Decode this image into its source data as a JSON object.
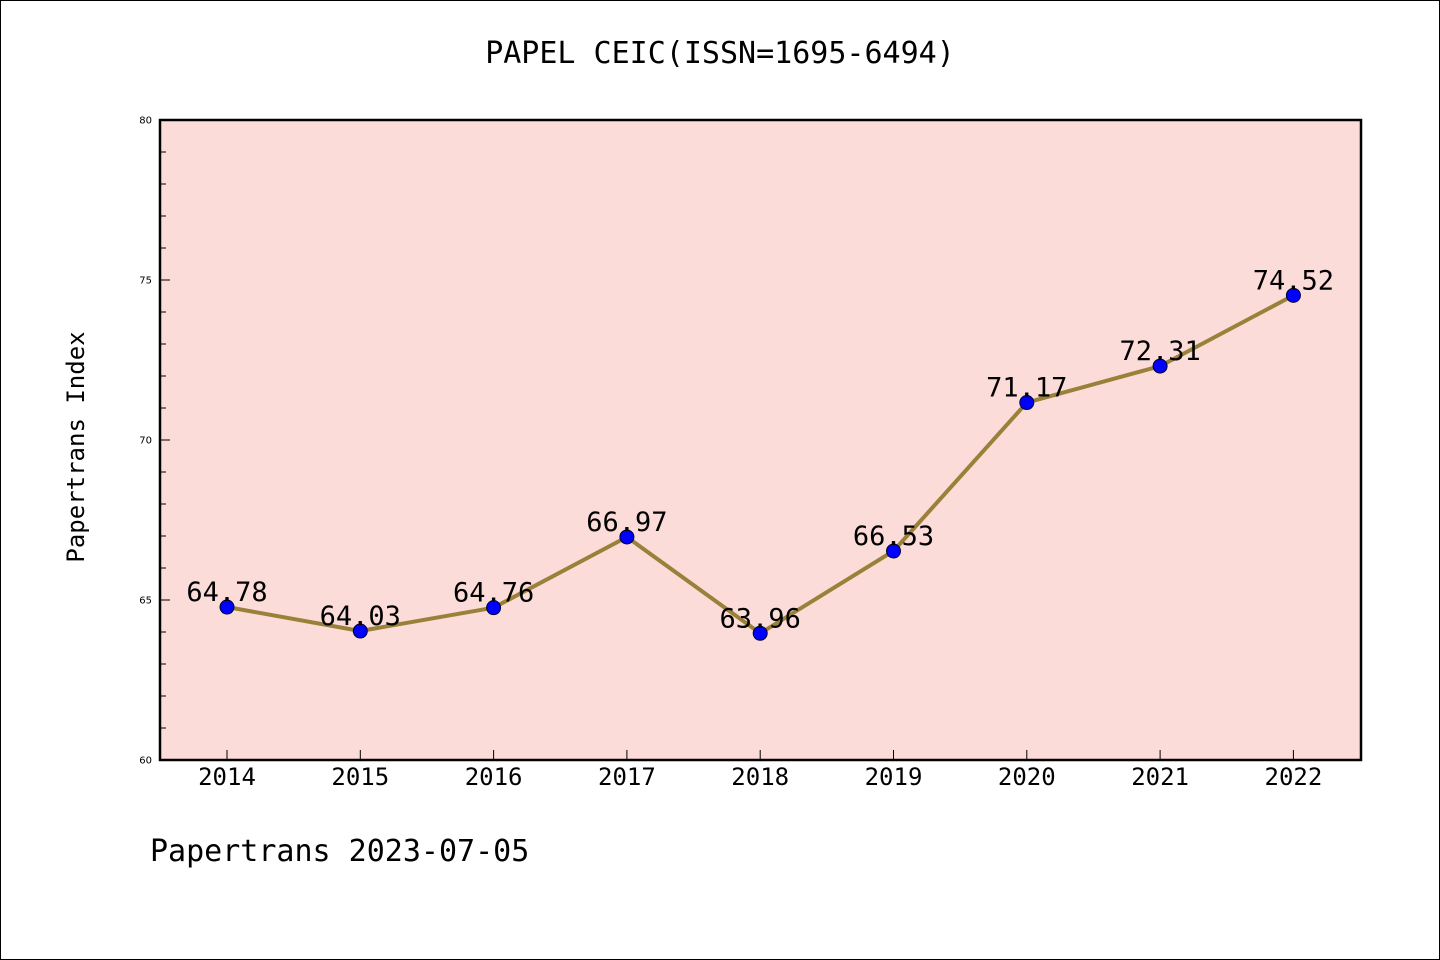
{
  "chart_data": {
    "type": "line",
    "title": "PAPEL CEIC(ISSN=1695-6494)",
    "xlabel": "",
    "ylabel": "Papertrans Index",
    "categories": [
      "2014",
      "2015",
      "2016",
      "2017",
      "2018",
      "2019",
      "2020",
      "2021",
      "2022"
    ],
    "series": [
      {
        "values": [
          64.78,
          64.03,
          64.76,
          66.97,
          63.96,
          66.53,
          71.17,
          72.31,
          74.52
        ]
      }
    ],
    "data_labels": [
      "64.78",
      "64.03",
      "64.76",
      "66.97",
      "63.96",
      "66.53",
      "71.17",
      "72.31",
      "74.52"
    ],
    "ylim": [
      60,
      80
    ],
    "yticks": [
      "60",
      "65",
      "70",
      "75",
      "80"
    ],
    "grid": false,
    "legend": "none",
    "colors": {
      "plot_background": "#fcdcd9",
      "line": "#9a8139",
      "marker": "#0000ff"
    }
  },
  "footer": {
    "text": "Papertrans 2023-07-05"
  }
}
